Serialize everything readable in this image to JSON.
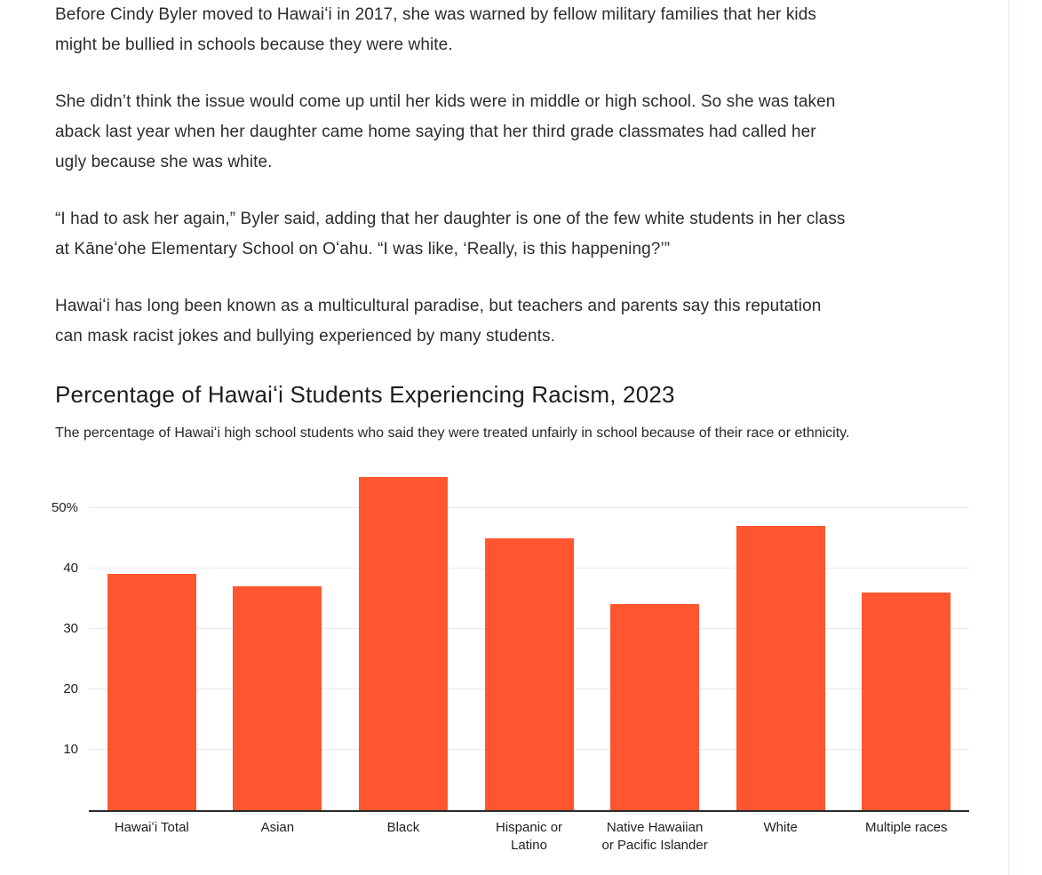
{
  "page": {
    "background": "#ffffff",
    "right_divider_color": "#efecdf",
    "text_color": "#2b2c31"
  },
  "article": {
    "paragraphs": [
      "Before Cindy Byler moved to Hawaiʻi in 2017, she was warned by fellow military families that her kids\nmight be bullied in schools because they were white.",
      "She didn’t think the issue would come up until her kids were in middle or high school. So she was taken\naback last year when her daughter came home saying that her third grade classmates had called her\nugly because she was white.",
      "“I had to ask her again,” Byler said, adding that her daughter is one of the few white students in her class\nat Kāneʻohe Elementary School on Oʻahu. “I was like, ‘Really, is this happening?’”",
      "Hawaiʻi has long been known as a multicultural paradise, but teachers and parents say this reputation\ncan mask racist jokes and bullying experienced by many students."
    ]
  },
  "chart_data": {
    "type": "bar",
    "title": "Percentage of Hawaiʻi Students Experiencing Racism, 2023",
    "subtitle": "The percentage of Hawaiʻi high school students who said they were treated unfairly in school because of their race or ethnicity.",
    "categories": [
      "Hawaiʻi Total",
      "Asian",
      "Black",
      "Hispanic or Latino",
      "Native Hawaiian or Pacific Islander",
      "White",
      "Multiple races"
    ],
    "category_labels": [
      "Hawaiʻi Total",
      "Asian",
      "Black",
      "Hispanic or\nLatino",
      "Native Hawaiian\nor Pacific Islander",
      "White",
      "Multiple races"
    ],
    "values": [
      39,
      37,
      55,
      45,
      34,
      47,
      36
    ],
    "unit": "%",
    "xlabel": "",
    "ylabel": "",
    "y_ticks": [
      10,
      20,
      30,
      40,
      50
    ],
    "y_tick_labels": [
      "10",
      "20",
      "30",
      "40",
      "50%"
    ],
    "ylim": [
      0,
      56
    ],
    "grid": true,
    "legend": false,
    "bar_color": "#ff5630",
    "gridline_color": "#e9e9e9",
    "axis_color": "#2b2b2b"
  }
}
